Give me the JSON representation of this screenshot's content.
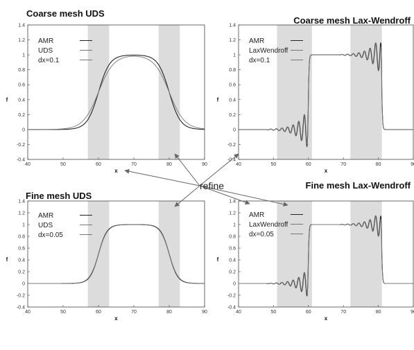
{
  "center_label": "refine",
  "chart_data": [
    {
      "type": "line",
      "title": "Coarse mesh UDS",
      "xlabel": "x",
      "ylabel": "f",
      "xlim": [
        40,
        90
      ],
      "ylim": [
        -0.4,
        1.4
      ],
      "xticks": [
        40,
        50,
        60,
        70,
        80,
        90
      ],
      "yticks": [
        -0.4,
        -0.2,
        0,
        0.2,
        0.4,
        0.6,
        0.8,
        1,
        1.2,
        1.4
      ],
      "shaded_x": [
        [
          57,
          63
        ],
        [
          77,
          83
        ]
      ],
      "legend": [
        "AMR",
        "UDS",
        "dx=0.1"
      ],
      "scheme": "uds",
      "sigma": 1.6,
      "series": [
        {
          "name": "AMR",
          "color": "#222222",
          "sigma_scale": 1.0
        },
        {
          "name": "UDS",
          "color": "#777777",
          "sigma_scale": 1.35
        }
      ]
    },
    {
      "type": "line",
      "title": "Coarse mesh Lax-Wendroff",
      "xlabel": "x",
      "ylabel": "f",
      "xlim": [
        40,
        90
      ],
      "ylim": [
        -0.4,
        1.4
      ],
      "xticks": [
        40,
        50,
        60,
        70,
        80,
        90
      ],
      "yticks": [
        -0.4,
        -0.2,
        0,
        0.2,
        0.4,
        0.6,
        0.8,
        1,
        1.2,
        1.4
      ],
      "shaded_x": [
        [
          51,
          61
        ],
        [
          72,
          81
        ]
      ],
      "legend": [
        "AMR",
        "LaxWendroff",
        "dx=0.1"
      ],
      "scheme": "lw",
      "osc_amp": 0.3,
      "series": [
        {
          "name": "AMR",
          "color": "#222222"
        },
        {
          "name": "LaxWendroff",
          "color": "#777777"
        }
      ]
    },
    {
      "type": "line",
      "title": "Fine mesh UDS",
      "xlabel": "x",
      "ylabel": "f",
      "xlim": [
        40,
        90
      ],
      "ylim": [
        -0.4,
        1.4
      ],
      "xticks": [
        40,
        50,
        60,
        70,
        80,
        90
      ],
      "yticks": [
        -0.4,
        -0.2,
        0,
        0.2,
        0.4,
        0.6,
        0.8,
        1,
        1.2,
        1.4
      ],
      "shaded_x": [
        [
          57,
          63
        ],
        [
          77,
          83
        ]
      ],
      "legend": [
        "AMR",
        "UDS",
        "dx=0.05"
      ],
      "scheme": "uds",
      "sigma": 1.2,
      "series": [
        {
          "name": "AMR",
          "color": "#222222",
          "sigma_scale": 1.0
        },
        {
          "name": "UDS",
          "color": "#777777",
          "sigma_scale": 1.05
        }
      ]
    },
    {
      "type": "line",
      "title": "Fine mesh Lax-Wendroff",
      "xlabel": "x",
      "ylabel": "f",
      "xlim": [
        40,
        90
      ],
      "ylim": [
        -0.4,
        1.4
      ],
      "xticks": [
        40,
        50,
        60,
        70,
        80,
        90
      ],
      "yticks": [
        -0.4,
        -0.2,
        0,
        0.2,
        0.4,
        0.6,
        0.8,
        1,
        1.2,
        1.4
      ],
      "shaded_x": [
        [
          51,
          61
        ],
        [
          72,
          81
        ]
      ],
      "legend": [
        "AMR",
        "LaxWendroff",
        "dx=0.05"
      ],
      "scheme": "lw",
      "osc_amp": 0.28,
      "series": [
        {
          "name": "AMR",
          "color": "#222222"
        },
        {
          "name": "LaxWendroff",
          "color": "#777777"
        }
      ]
    }
  ]
}
